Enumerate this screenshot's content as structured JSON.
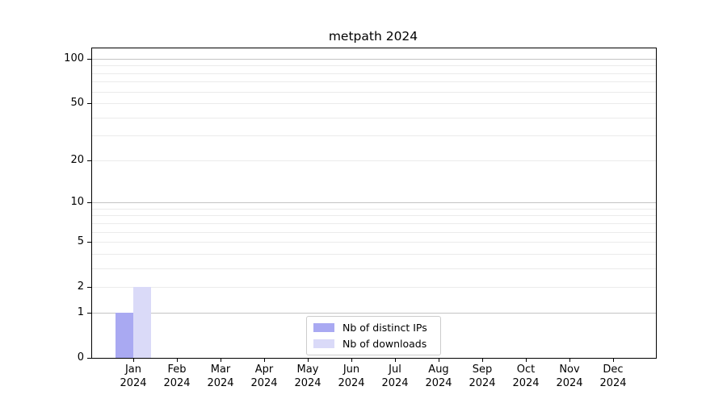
{
  "chart_data": {
    "type": "bar",
    "title": "metpath 2024",
    "categories": [
      "Jan 2024",
      "Feb 2024",
      "Mar 2024",
      "Apr 2024",
      "May 2024",
      "Jun 2024",
      "Jul 2024",
      "Aug 2024",
      "Sep 2024",
      "Oct 2024",
      "Nov 2024",
      "Dec 2024"
    ],
    "series": [
      {
        "name": "Nb of distinct IPs",
        "color": "#a9a9f2",
        "values": [
          1,
          0,
          0,
          0,
          0,
          0,
          0,
          0,
          0,
          0,
          0,
          0
        ]
      },
      {
        "name": "Nb of downloads",
        "color": "#dadaf8",
        "values": [
          2,
          0,
          0,
          0,
          0,
          0,
          0,
          0,
          0,
          0,
          0,
          0
        ]
      }
    ],
    "y_axis": {
      "scale": "log1p",
      "ticks": [
        0,
        1,
        2,
        5,
        10,
        20,
        50,
        100
      ],
      "ylim": [
        0,
        117.8
      ],
      "major_gridlines": [
        1,
        10,
        100
      ],
      "minor_gridlines": [
        2,
        3,
        4,
        5,
        6,
        7,
        8,
        9,
        20,
        30,
        40,
        50,
        60,
        70,
        80,
        90
      ]
    },
    "legend": {
      "location": "lower center"
    },
    "grid": true
  },
  "colors": {
    "major_grid": "#c4c4c4",
    "minor_grid": "#ebebeb",
    "spine": "#000000",
    "background": "#ffffff"
  }
}
